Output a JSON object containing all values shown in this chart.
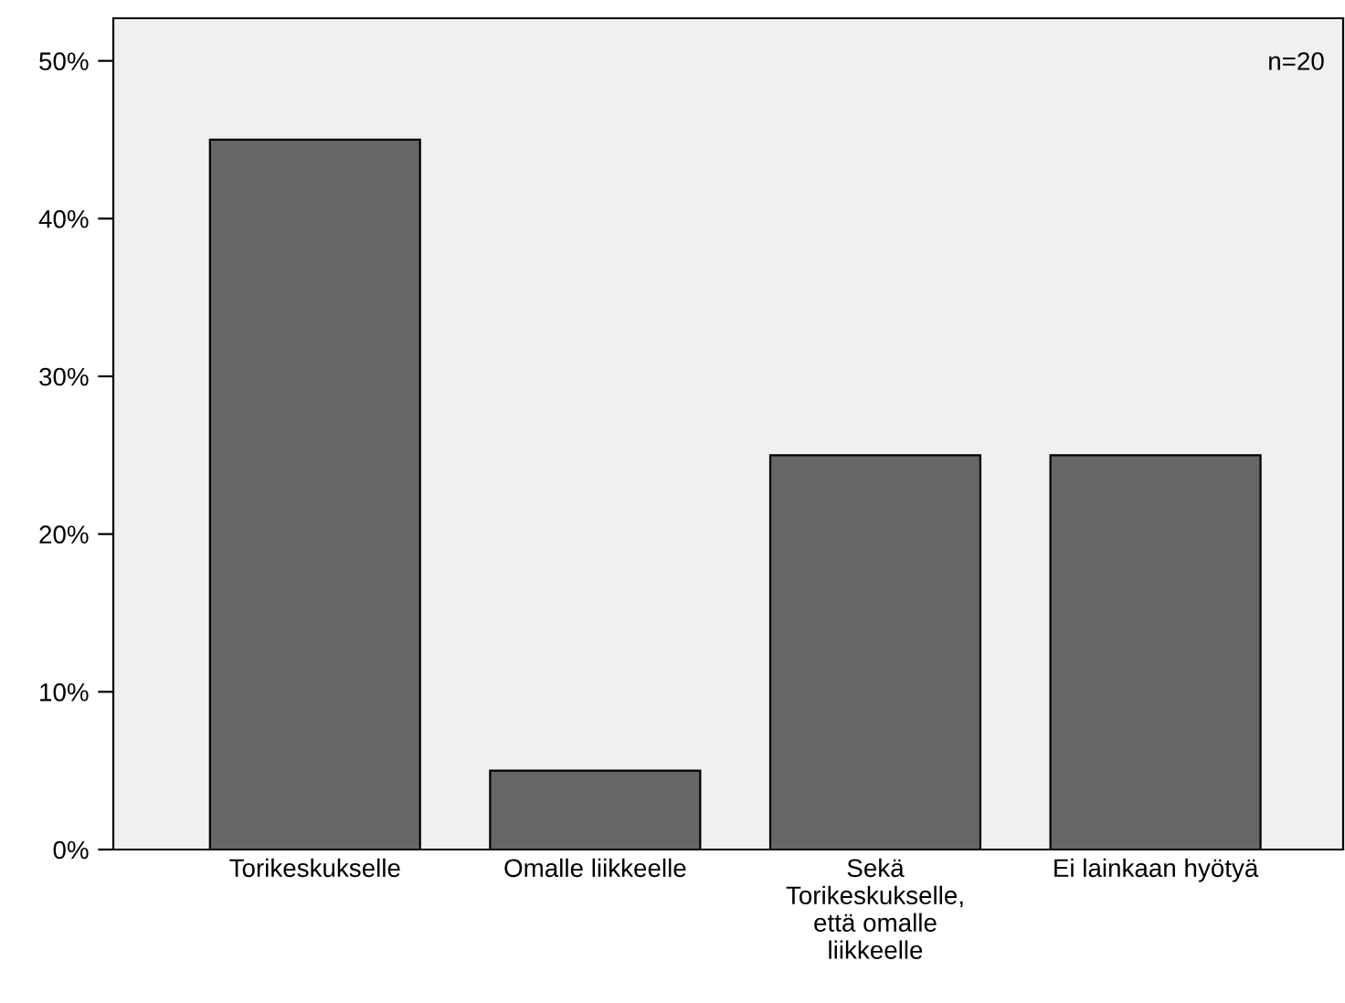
{
  "chart_data": {
    "type": "bar",
    "categories": [
      "Torikeskukselle",
      "Omalle liikkeelle",
      "Sekä\nTorikeskukselle,\nettä omalle\nliikkeelle",
      "Ei lainkaan hyötyä"
    ],
    "values": [
      45,
      5,
      25,
      25
    ],
    "color": "#666666",
    "ylim": [
      0,
      52.7
    ],
    "yticks": [
      {
        "value": 0,
        "label": "0%"
      },
      {
        "value": 10,
        "label": "10%"
      },
      {
        "value": 20,
        "label": "20%"
      },
      {
        "value": 30,
        "label": "30%"
      },
      {
        "value": 40,
        "label": "40%"
      },
      {
        "value": 50,
        "label": "50%"
      }
    ],
    "annotations": [
      "n=20"
    ],
    "grid": false,
    "legend": false
  }
}
